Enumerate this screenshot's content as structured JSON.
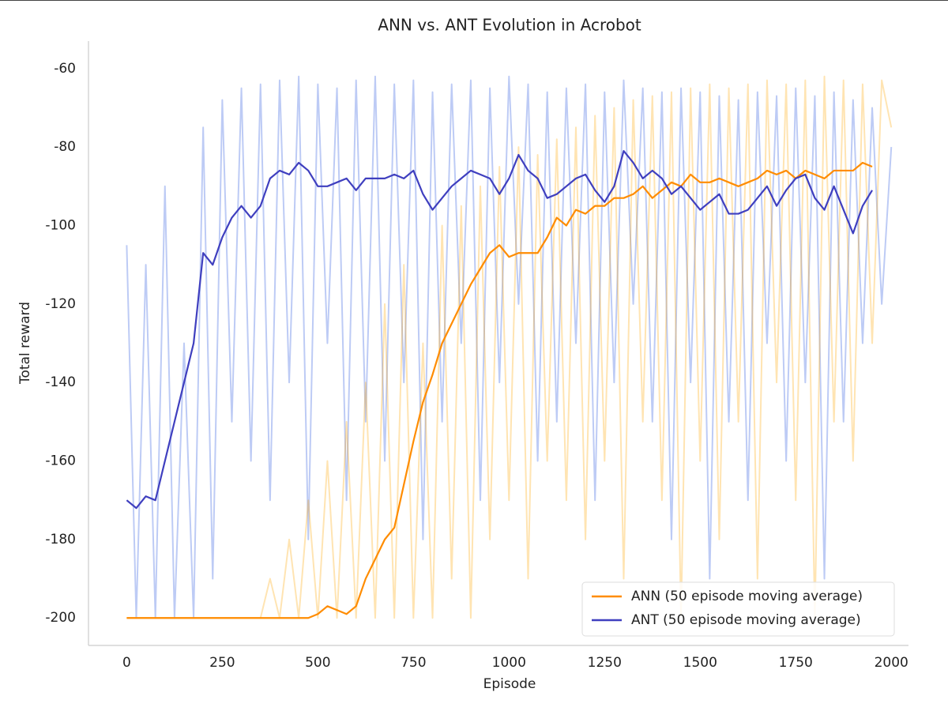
{
  "chart_data": {
    "type": "line",
    "title": "ANN vs. ANT Evolution in Acrobot",
    "x_label": "Episode",
    "y_label": "Total reward",
    "xlim": [
      -100,
      2045
    ],
    "ylim": [
      -207,
      -53
    ],
    "xticks": [
      0,
      250,
      500,
      750,
      1000,
      1250,
      1500,
      1750,
      2000
    ],
    "yticks": [
      -200,
      -180,
      -160,
      -140,
      -120,
      -100,
      -80,
      -60
    ],
    "grid": false,
    "legend": "lower right",
    "series": [
      {
        "color": "#4169e1",
        "alpha": 0.35,
        "x": [
          0,
          25,
          50,
          75,
          100,
          125,
          150,
          175,
          200,
          225,
          250,
          275,
          300,
          325,
          350,
          375,
          400,
          425,
          450,
          475,
          500,
          525,
          550,
          575,
          600,
          625,
          650,
          675,
          700,
          725,
          750,
          775,
          800,
          825,
          850,
          875,
          900,
          925,
          950,
          975,
          1000,
          1025,
          1050,
          1075,
          1100,
          1125,
          1150,
          1175,
          1200,
          1225,
          1250,
          1275,
          1300,
          1325,
          1350,
          1375,
          1400,
          1425,
          1450,
          1475,
          1500,
          1525,
          1550,
          1575,
          1600,
          1625,
          1650,
          1675,
          1700,
          1725,
          1750,
          1775,
          1800,
          1825,
          1850,
          1875,
          1900,
          1925,
          1950,
          1975,
          2000
        ],
        "values": [
          -105,
          -200,
          -110,
          -200,
          -90,
          -200,
          -130,
          -200,
          -75,
          -190,
          -68,
          -150,
          -65,
          -160,
          -64,
          -170,
          -63,
          -140,
          -62,
          -180,
          -64,
          -130,
          -65,
          -170,
          -63,
          -150,
          -62,
          -160,
          -64,
          -140,
          -63,
          -180,
          -66,
          -150,
          -64,
          -130,
          -63,
          -170,
          -65,
          -140,
          -62,
          -120,
          -64,
          -160,
          -66,
          -150,
          -65,
          -130,
          -64,
          -170,
          -66,
          -140,
          -63,
          -120,
          -65,
          -150,
          -66,
          -180,
          -65,
          -140,
          -66,
          -190,
          -67,
          -150,
          -68,
          -170,
          -66,
          -130,
          -67,
          -160,
          -65,
          -140,
          -67,
          -190,
          -66,
          -150,
          -68,
          -130,
          -70,
          -120,
          -80
        ]
      },
      {
        "color": "#ffa500",
        "alpha": 0.3,
        "x": [
          0,
          25,
          50,
          75,
          100,
          125,
          150,
          175,
          200,
          225,
          250,
          275,
          300,
          325,
          350,
          375,
          400,
          425,
          450,
          475,
          500,
          525,
          550,
          575,
          600,
          625,
          650,
          675,
          700,
          725,
          750,
          775,
          800,
          825,
          850,
          875,
          900,
          925,
          950,
          975,
          1000,
          1025,
          1050,
          1075,
          1100,
          1125,
          1150,
          1175,
          1200,
          1225,
          1250,
          1275,
          1300,
          1325,
          1350,
          1375,
          1400,
          1425,
          1450,
          1475,
          1500,
          1525,
          1550,
          1575,
          1600,
          1625,
          1650,
          1675,
          1700,
          1725,
          1750,
          1775,
          1800,
          1825,
          1850,
          1875,
          1900,
          1925,
          1950,
          1975,
          2000
        ],
        "values": [
          -200,
          -200,
          -200,
          -200,
          -200,
          -200,
          -200,
          -200,
          -200,
          -200,
          -200,
          -200,
          -200,
          -200,
          -200,
          -190,
          -200,
          -180,
          -200,
          -170,
          -200,
          -160,
          -200,
          -150,
          -200,
          -140,
          -200,
          -120,
          -200,
          -110,
          -200,
          -130,
          -200,
          -100,
          -190,
          -95,
          -200,
          -90,
          -180,
          -85,
          -170,
          -80,
          -190,
          -82,
          -160,
          -78,
          -170,
          -75,
          -180,
          -72,
          -160,
          -70,
          -190,
          -68,
          -150,
          -67,
          -170,
          -66,
          -200,
          -65,
          -160,
          -64,
          -180,
          -65,
          -150,
          -64,
          -190,
          -63,
          -140,
          -64,
          -170,
          -63,
          -200,
          -62,
          -150,
          -63,
          -160,
          -64,
          -130,
          -63,
          -75
        ]
      },
      {
        "name": "ANN (50 episode moving average)",
        "color": "#ff8c00",
        "alpha": 1,
        "x": [
          0,
          25,
          50,
          75,
          100,
          125,
          150,
          175,
          200,
          225,
          250,
          275,
          300,
          325,
          350,
          375,
          400,
          425,
          450,
          475,
          500,
          525,
          550,
          575,
          600,
          625,
          650,
          675,
          700,
          725,
          750,
          775,
          800,
          825,
          850,
          875,
          900,
          925,
          950,
          975,
          1000,
          1025,
          1050,
          1075,
          1100,
          1125,
          1150,
          1175,
          1200,
          1225,
          1250,
          1275,
          1300,
          1325,
          1350,
          1375,
          1400,
          1425,
          1450,
          1475,
          1500,
          1525,
          1550,
          1575,
          1600,
          1625,
          1650,
          1675,
          1700,
          1725,
          1750,
          1775,
          1800,
          1825,
          1850,
          1875,
          1900,
          1925,
          1950
        ],
        "values": [
          -200,
          -200,
          -200,
          -200,
          -200,
          -200,
          -200,
          -200,
          -200,
          -200,
          -200,
          -200,
          -200,
          -200,
          -200,
          -200,
          -200,
          -200,
          -200,
          -200,
          -199,
          -197,
          -198,
          -199,
          -197,
          -190,
          -185,
          -180,
          -177,
          -166,
          -155,
          -145,
          -138,
          -130,
          -125,
          -120,
          -115,
          -111,
          -107,
          -105,
          -108,
          -107,
          -107,
          -107,
          -103,
          -98,
          -100,
          -96,
          -97,
          -95,
          -95,
          -93,
          -93,
          -92,
          -90,
          -93,
          -91,
          -89,
          -90,
          -87,
          -89,
          -89,
          -88,
          -89,
          -90,
          -89,
          -88,
          -86,
          -87,
          -86,
          -88,
          -86,
          -87,
          -88,
          -86,
          -86,
          -86,
          -84,
          -85
        ]
      },
      {
        "name": "ANT (50 episode moving average)",
        "color": "#3f3fbf",
        "alpha": 1,
        "x": [
          0,
          25,
          50,
          75,
          100,
          125,
          150,
          175,
          200,
          225,
          250,
          275,
          300,
          325,
          350,
          375,
          400,
          425,
          450,
          475,
          500,
          525,
          550,
          575,
          600,
          625,
          650,
          675,
          700,
          725,
          750,
          775,
          800,
          825,
          850,
          875,
          900,
          925,
          950,
          975,
          1000,
          1025,
          1050,
          1075,
          1100,
          1125,
          1150,
          1175,
          1200,
          1225,
          1250,
          1275,
          1300,
          1325,
          1350,
          1375,
          1400,
          1425,
          1450,
          1475,
          1500,
          1525,
          1550,
          1575,
          1600,
          1625,
          1650,
          1675,
          1700,
          1725,
          1750,
          1775,
          1800,
          1825,
          1850,
          1875,
          1900,
          1925,
          1950
        ],
        "values": [
          -170,
          -172,
          -169,
          -170,
          -160,
          -150,
          -140,
          -130,
          -107,
          -110,
          -103,
          -98,
          -95,
          -98,
          -95,
          -88,
          -86,
          -87,
          -84,
          -86,
          -90,
          -90,
          -89,
          -88,
          -91,
          -88,
          -88,
          -88,
          -87,
          -88,
          -86,
          -92,
          -96,
          -93,
          -90,
          -88,
          -86,
          -87,
          -88,
          -92,
          -88,
          -82,
          -86,
          -88,
          -93,
          -92,
          -90,
          -88,
          -87,
          -91,
          -94,
          -90,
          -81,
          -84,
          -88,
          -86,
          -88,
          -92,
          -90,
          -93,
          -96,
          -94,
          -92,
          -97,
          -97,
          -96,
          -93,
          -90,
          -95,
          -91,
          -88,
          -87,
          -93,
          -96,
          -90,
          -96,
          -102,
          -95,
          -91
        ]
      }
    ]
  }
}
